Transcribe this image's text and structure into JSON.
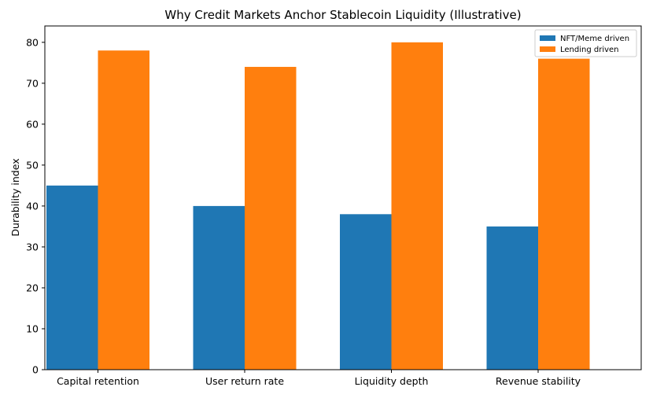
{
  "chart_data": {
    "type": "bar",
    "title": "Why Credit Markets Anchor Stablecoin Liquidity (Illustrative)",
    "xlabel": "",
    "ylabel": "Durability index",
    "categories": [
      "Capital retention",
      "User return rate",
      "Liquidity depth",
      "Revenue stability"
    ],
    "series": [
      {
        "name": "NFT/Meme driven",
        "values": [
          45,
          40,
          38,
          35
        ],
        "color": "#1f77b4"
      },
      {
        "name": "Lending driven",
        "values": [
          78,
          74,
          80,
          76
        ],
        "color": "#ff7f0e"
      }
    ],
    "ylim": [
      0,
      84
    ],
    "yticks": [
      0,
      10,
      20,
      30,
      40,
      50,
      60,
      70,
      80
    ],
    "grid": false,
    "legend_position": "top-right"
  }
}
